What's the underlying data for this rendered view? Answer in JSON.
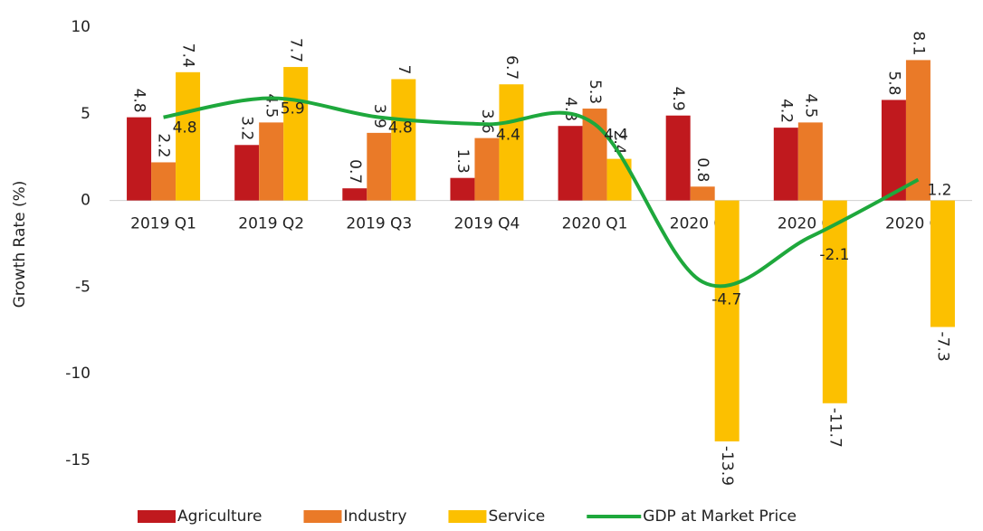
{
  "chart_data": {
    "type": "bar_line",
    "y_label": "Growth Rate (%)",
    "categories": [
      "2019 Q1",
      "2019 Q2",
      "2019 Q3",
      "2019 Q4",
      "2020 Q1",
      "2020 Q2",
      "2020 Q3",
      "2020 Q4"
    ],
    "series": [
      {
        "name": "Agriculture",
        "type": "bar",
        "color": "#c0191e",
        "values": [
          4.8,
          3.2,
          0.7,
          1.3,
          4.3,
          4.9,
          4.2,
          5.8
        ]
      },
      {
        "name": "Industry",
        "type": "bar",
        "color": "#ea7a28",
        "values": [
          2.2,
          4.5,
          3.9,
          3.6,
          5.3,
          0.8,
          4.5,
          8.1
        ]
      },
      {
        "name": "Service",
        "type": "bar",
        "color": "#fcc000",
        "values": [
          7.4,
          7.7,
          7,
          6.7,
          2.4,
          -13.9,
          -11.7,
          -7.3
        ]
      },
      {
        "name": "GDP at Market Price",
        "type": "line",
        "color": "#1ea83c",
        "values": [
          4.8,
          5.9,
          4.8,
          4.4,
          4.4,
          -4.7,
          -2.1,
          1.2
        ]
      }
    ],
    "ylim": [
      -15,
      10
    ],
    "yticks": [
      -15,
      -10,
      -5,
      0,
      5,
      10
    ],
    "legend": "bottom"
  }
}
